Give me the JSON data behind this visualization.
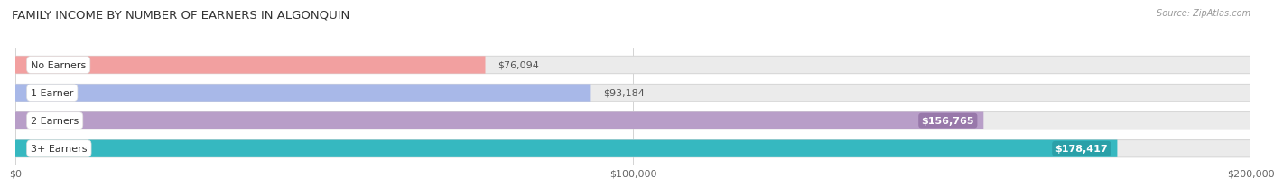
{
  "title": "FAMILY INCOME BY NUMBER OF EARNERS IN ALGONQUIN",
  "source": "Source: ZipAtlas.com",
  "categories": [
    "No Earners",
    "1 Earner",
    "2 Earners",
    "3+ Earners"
  ],
  "values": [
    76094,
    93184,
    156765,
    178417
  ],
  "labels": [
    "$76,094",
    "$93,184",
    "$156,765",
    "$178,417"
  ],
  "bar_colors": [
    "#f2a0a0",
    "#a8b8e8",
    "#b89ec8",
    "#36b8c0"
  ],
  "label_bg_colors": [
    "#e88888",
    "#8898cc",
    "#9878aa",
    "#2aa0a8"
  ],
  "background_color": "#ffffff",
  "bar_bg_color": "#ebebeb",
  "bar_bg_edge": "#d8d8d8",
  "xlim": [
    0,
    200000
  ],
  "xticks": [
    0,
    100000,
    200000
  ],
  "xtick_labels": [
    "$0",
    "$100,000",
    "$200,000"
  ],
  "title_fontsize": 9.5,
  "label_fontsize": 8,
  "cat_fontsize": 8,
  "tick_fontsize": 8,
  "bar_height": 0.62,
  "label_inside_threshold": 140000,
  "max_val": 200000
}
